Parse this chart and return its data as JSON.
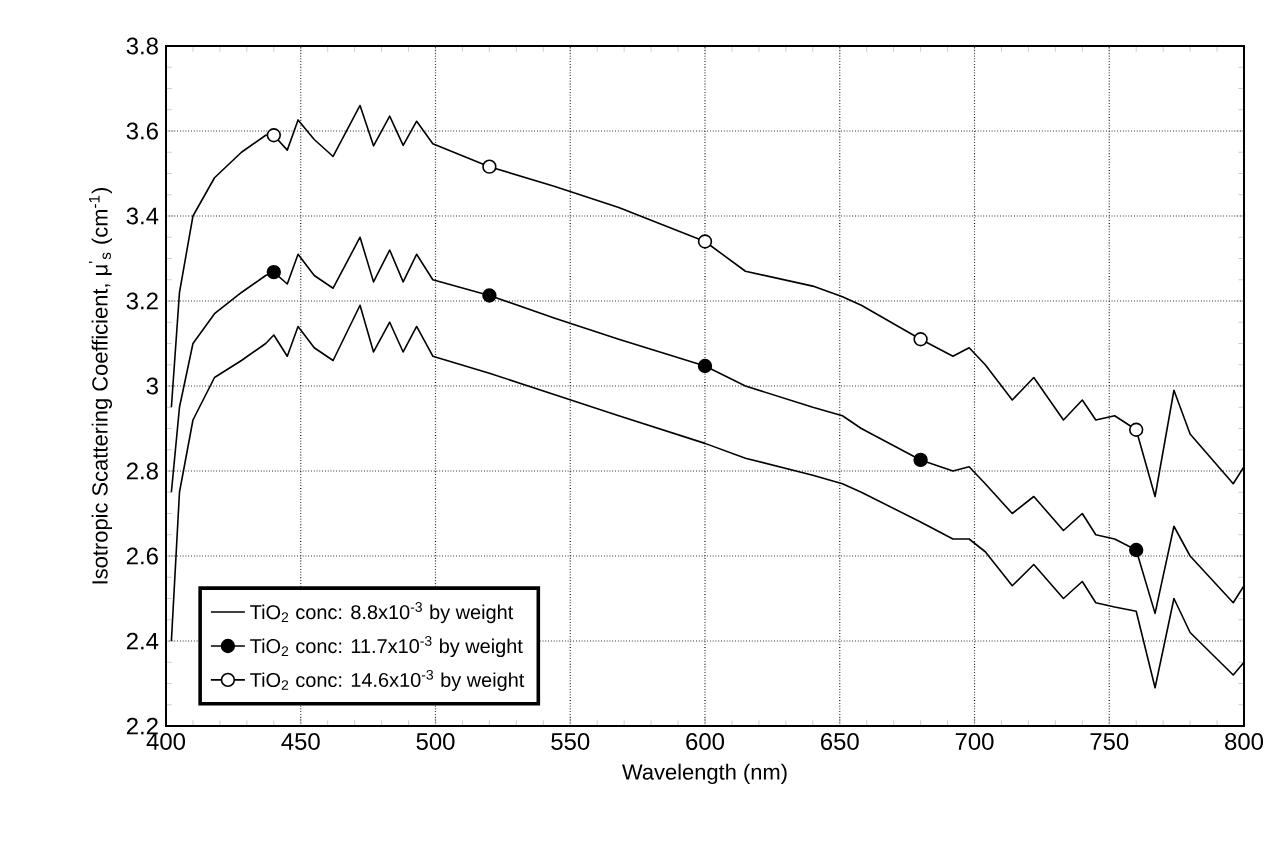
{
  "chart_data": {
    "type": "line",
    "xlabel": "Wavelength (nm)",
    "ylabel": "Isotropic Scattering Coefficient, μ$^{'}$$_{s}$ (cm$^{-1}$)",
    "xlim": [
      400,
      800
    ],
    "ylim": [
      2.2,
      3.8
    ],
    "xticks": [
      400,
      450,
      500,
      550,
      600,
      650,
      700,
      750,
      800
    ],
    "yticks": [
      2.2,
      2.4,
      2.6,
      2.8,
      3,
      3.2,
      3.4,
      3.6,
      3.8
    ],
    "grid": true,
    "legend": "bottom left",
    "line_style": "solid",
    "x": [
      402,
      405,
      410,
      418,
      428,
      437,
      440,
      445,
      449,
      455,
      462,
      472,
      477,
      483,
      488,
      493,
      499,
      520,
      544,
      568,
      600,
      615,
      640,
      651,
      658,
      680,
      692,
      698,
      704,
      714,
      722,
      733,
      740,
      745,
      752,
      760,
      767,
      774,
      780,
      796,
      800
    ],
    "series": [
      {
        "name": "TiO$_{2}$ conc: 8.8x10$^{-3}$ by weight",
        "color": "#000000",
        "marker": "none",
        "values": [
          2.4,
          2.75,
          2.92,
          3.02,
          3.06,
          3.1,
          3.12,
          3.07,
          3.14,
          3.09,
          3.06,
          3.19,
          3.08,
          3.15,
          3.08,
          3.14,
          3.07,
          3.03,
          2.98,
          2.93,
          2.865,
          2.83,
          2.79,
          2.77,
          2.75,
          2.68,
          2.64,
          2.64,
          2.61,
          2.53,
          2.58,
          2.5,
          2.54,
          2.49,
          2.48,
          2.47,
          2.29,
          2.5,
          2.42,
          2.32,
          2.35
        ]
      },
      {
        "color": "#000000",
        "marker": "none",
        "values": [
          2.75,
          2.95,
          3.1,
          3.17,
          3.22,
          3.26,
          3.268,
          3.24,
          3.31,
          3.26,
          3.23,
          3.35,
          3.245,
          3.32,
          3.245,
          3.31,
          3.25,
          3.213,
          3.16,
          3.11,
          3.047,
          3.0,
          2.95,
          2.93,
          2.9,
          2.826,
          2.8,
          2.81,
          2.77,
          2.7,
          2.74,
          2.66,
          2.7,
          2.65,
          2.64,
          2.614,
          2.465,
          2.67,
          2.6,
          2.49,
          2.53
        ]
      },
      {
        "color": "#000000",
        "marker": "none",
        "values": [
          2.95,
          3.22,
          3.4,
          3.49,
          3.55,
          3.59,
          3.59,
          3.555,
          3.626,
          3.58,
          3.54,
          3.66,
          3.565,
          3.635,
          3.566,
          3.623,
          3.57,
          3.516,
          3.47,
          3.42,
          3.34,
          3.27,
          3.235,
          3.21,
          3.19,
          3.11,
          3.07,
          3.09,
          3.05,
          2.967,
          3.02,
          2.92,
          2.967,
          2.92,
          2.93,
          2.897,
          2.74,
          2.99,
          2.887,
          2.77,
          2.81
        ]
      },
      {
        "type": "scatter",
        "name": "TiO$_{2}$ conc: 11.7x10$^{-3}$ by weight",
        "color": "#000000",
        "marker": "circle",
        "x": [
          440,
          520,
          600,
          680,
          760
        ],
        "values": [
          3.268,
          3.213,
          3.047,
          2.826,
          2.614
        ]
      },
      {
        "type": "scatter",
        "name": "TiO$_{2}$ conc: 14.6x10$^{-3}$ by weight",
        "color": "#ffffff",
        "marker": "circle",
        "x": [
          440,
          520,
          600,
          680,
          760
        ],
        "values": [
          3.59,
          3.516,
          3.34,
          3.11,
          2.897
        ]
      }
    ]
  }
}
